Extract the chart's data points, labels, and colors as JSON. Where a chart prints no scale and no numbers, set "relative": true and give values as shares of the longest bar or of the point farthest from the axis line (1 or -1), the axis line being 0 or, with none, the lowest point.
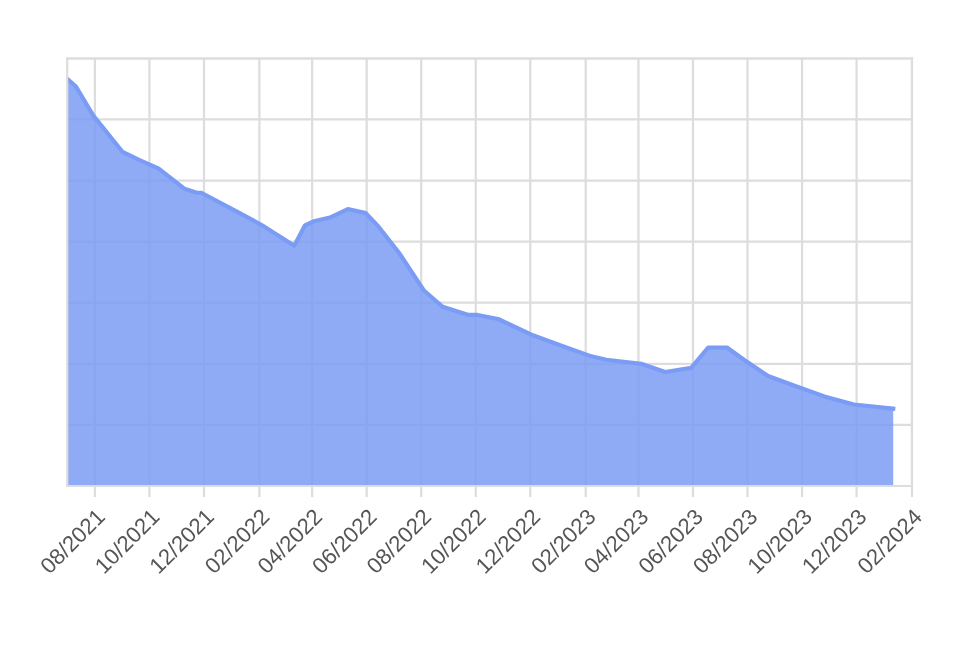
{
  "chart_data": {
    "type": "area",
    "relative": true,
    "grid": true,
    "x": [
      "2021-07-01",
      "2021-07-11",
      "2021-07-30",
      "2021-09-01",
      "2021-09-20",
      "2021-10-11",
      "2021-11-09",
      "2021-11-23",
      "2021-11-28",
      "2022-01-10",
      "2022-02-04",
      "2022-03-12",
      "2022-03-24",
      "2022-04-03",
      "2022-04-22",
      "2022-05-11",
      "2022-05-31",
      "2022-06-13",
      "2022-07-08",
      "2022-08-04",
      "2022-08-25",
      "2022-09-08",
      "2022-09-23",
      "2022-10-03",
      "2022-10-26",
      "2022-12-04",
      "2022-12-29",
      "2023-02-05",
      "2023-02-24",
      "2023-04-04",
      "2023-05-01",
      "2023-05-30",
      "2023-06-18",
      "2023-07-09",
      "2023-07-28",
      "2023-08-24",
      "2023-09-18",
      "2023-10-26",
      "2023-11-28",
      "2024-01-11"
    ],
    "series": [
      {
        "color": "#7b9cf5",
        "values": [
          1.0,
          0.98,
          0.91,
          0.82,
          0.8,
          0.78,
          0.73,
          0.72,
          0.72,
          0.67,
          0.64,
          0.59,
          0.64,
          0.65,
          0.66,
          0.68,
          0.67,
          0.64,
          0.57,
          0.48,
          0.44,
          0.43,
          0.42,
          0.42,
          0.41,
          0.37,
          0.35,
          0.32,
          0.31,
          0.3,
          0.28,
          0.29,
          0.34,
          0.34,
          0.31,
          0.27,
          0.25,
          0.22,
          0.2,
          0.19
        ]
      }
    ],
    "xlim": [
      "2021-07-01",
      "2024-02-01"
    ],
    "xticks": [
      {
        "value": "2021-08-01",
        "label": "08/2021"
      },
      {
        "value": "2021-10-01",
        "label": "10/2021"
      },
      {
        "value": "2021-12-01",
        "label": "12/2021"
      },
      {
        "value": "2022-02-01",
        "label": "02/2022"
      },
      {
        "value": "2022-04-01",
        "label": "04/2022"
      },
      {
        "value": "2022-06-01",
        "label": "06/2022"
      },
      {
        "value": "2022-08-01",
        "label": "08/2022"
      },
      {
        "value": "2022-10-01",
        "label": "10/2022"
      },
      {
        "value": "2022-12-01",
        "label": "12/2022"
      },
      {
        "value": "2023-02-01",
        "label": "02/2023"
      },
      {
        "value": "2023-04-01",
        "label": "04/2023"
      },
      {
        "value": "2023-06-01",
        "label": "06/2023"
      },
      {
        "value": "2023-08-01",
        "label": "08/2023"
      },
      {
        "value": "2023-10-01",
        "label": "10/2023"
      },
      {
        "value": "2023-12-01",
        "label": "12/2023"
      },
      {
        "value": "2024-02-01",
        "label": "02/2024"
      }
    ]
  }
}
